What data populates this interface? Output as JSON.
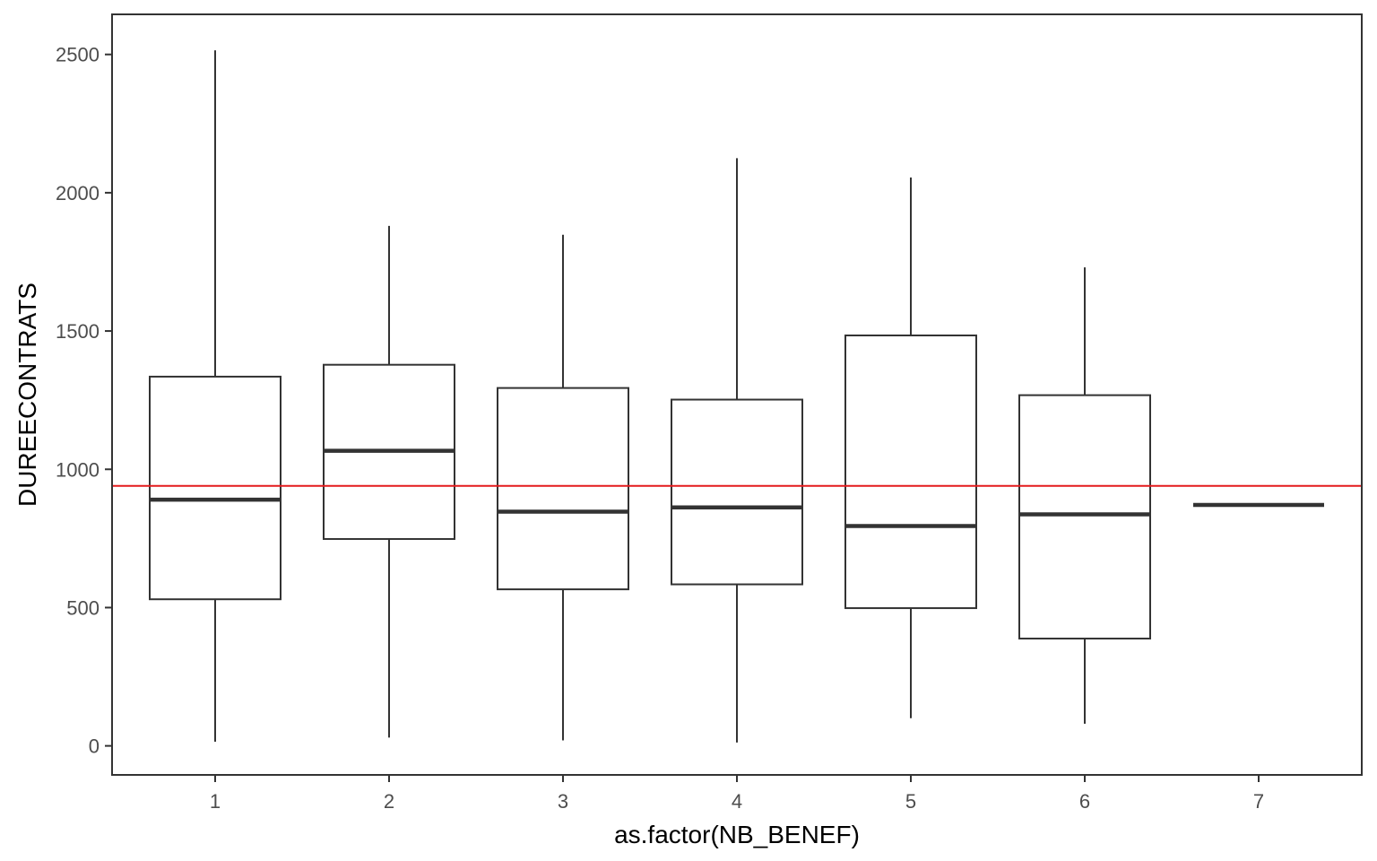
{
  "chart_data": {
    "type": "boxplot",
    "title": "",
    "xlabel": "as.factor(NB_BENEF)",
    "ylabel": "DUREECONTRATS",
    "categories": [
      "1",
      "2",
      "3",
      "4",
      "5",
      "6",
      "7"
    ],
    "boxes": [
      {
        "category": "1",
        "min": 15,
        "q1": 530,
        "median": 890,
        "q3": 1335,
        "max": 2515
      },
      {
        "category": "2",
        "min": 30,
        "q1": 748,
        "median": 1067,
        "q3": 1378,
        "max": 1880
      },
      {
        "category": "3",
        "min": 20,
        "q1": 566,
        "median": 847,
        "q3": 1294,
        "max": 1848
      },
      {
        "category": "4",
        "min": 12,
        "q1": 584,
        "median": 862,
        "q3": 1252,
        "max": 2125
      },
      {
        "category": "5",
        "min": 100,
        "q1": 498,
        "median": 795,
        "q3": 1484,
        "max": 2055
      },
      {
        "category": "6",
        "min": 80,
        "q1": 388,
        "median": 837,
        "q3": 1268,
        "max": 1730
      },
      {
        "category": "7",
        "min": 871,
        "q1": 871,
        "median": 871,
        "q3": 871,
        "max": 871
      }
    ],
    "reference_line": {
      "y": 940,
      "color": "#e41a1c"
    },
    "ylim": [
      -105,
      2645
    ],
    "yticks": [
      0,
      500,
      1000,
      1500,
      2000,
      2500
    ],
    "grid": false,
    "legend": "none",
    "colors": {
      "box_stroke": "#333333",
      "panel_border": "#333333",
      "axis_tick": "#333333"
    }
  }
}
